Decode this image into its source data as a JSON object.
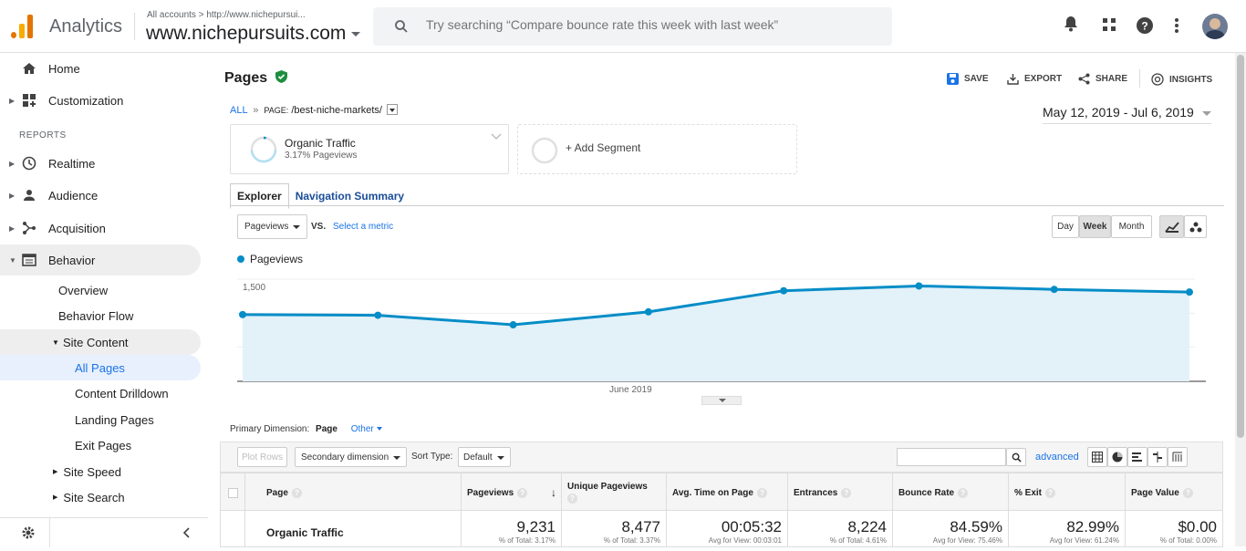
{
  "header": {
    "app_title": "Analytics",
    "account_crumb": "All accounts > http://www.nichepursui...",
    "account_name": "www.nichepursuits.com",
    "search_placeholder": "Try searching “Compare bounce rate this week with last week”"
  },
  "sidebar": {
    "home": "Home",
    "customization": "Customization",
    "reports_label": "REPORTS",
    "realtime": "Realtime",
    "audience": "Audience",
    "acquisition": "Acquisition",
    "behavior": "Behavior",
    "overview": "Overview",
    "behavior_flow": "Behavior Flow",
    "site_content": "Site Content",
    "all_pages": "All Pages",
    "content_drilldown": "Content Drilldown",
    "landing_pages": "Landing Pages",
    "exit_pages": "Exit Pages",
    "site_speed": "Site Speed",
    "site_search": "Site Search"
  },
  "page": {
    "title": "Pages",
    "save": "SAVE",
    "export": "EXPORT",
    "share": "SHARE",
    "insights": "INSIGHTS",
    "crumb_all": "ALL",
    "crumb_sep": "»",
    "crumb_page_label": "PAGE:",
    "crumb_page_value": "/best-niche-markets/",
    "date_range": "May 12, 2019 - Jul 6, 2019",
    "segment_name": "Organic Traffic",
    "segment_sub": "3.17% Pageviews",
    "add_segment": "+ Add Segment",
    "tab_explorer": "Explorer",
    "tab_nav_summary": "Navigation Summary",
    "metric_select": "Pageviews",
    "vs": "VS.",
    "select_metric": "Select a metric",
    "day": "Day",
    "week": "Week",
    "month": "Month"
  },
  "chart_data": {
    "type": "line",
    "series": [
      {
        "name": "Pageviews",
        "values": [
          980,
          970,
          830,
          1020,
          1330,
          1400,
          1350,
          1310
        ]
      }
    ],
    "x_label": "June 2019",
    "yticks": [
      "1,500",
      "1,000",
      "500"
    ],
    "ylim": [
      0,
      1500
    ],
    "color": "#058dc7",
    "fill": "#e3f1f9"
  },
  "table": {
    "primary_dimension_label": "Primary Dimension:",
    "primary_dimension_value": "Page",
    "other": "Other",
    "plot_rows": "Plot Rows",
    "secondary_dimension": "Secondary dimension",
    "sort_type_label": "Sort Type:",
    "sort_type_value": "Default",
    "advanced": "advanced",
    "headers": [
      "Page",
      "Pageviews",
      "Unique Pageviews",
      "Avg. Time on Page",
      "Entrances",
      "Bounce Rate",
      "% Exit",
      "Page Value"
    ],
    "row_label": "Organic Traffic",
    "totals": [
      {
        "value": "9,231",
        "sub": "% of Total: 3.17%"
      },
      {
        "value": "8,477",
        "sub": "% of Total: 3.37%"
      },
      {
        "value": "00:05:32",
        "sub": "Avg for View: 00:03:01"
      },
      {
        "value": "8,224",
        "sub": "% of Total: 4.61%"
      },
      {
        "value": "84.59%",
        "sub": "Avg for View: 75.46%"
      },
      {
        "value": "82.99%",
        "sub": "Avg for View: 61.24%"
      },
      {
        "value": "$0.00",
        "sub": "% of Total: 0.00%"
      }
    ]
  }
}
